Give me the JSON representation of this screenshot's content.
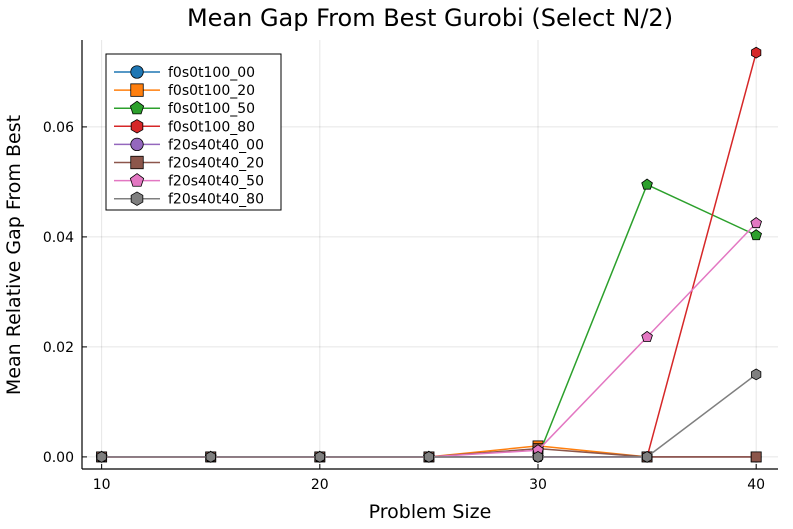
{
  "chart_data": {
    "type": "line",
    "title": "Mean Gap From Best Gurobi (Select N/2)",
    "xlabel": "Problem Size",
    "ylabel": "Mean Relative Gap From Best",
    "xlim": [
      9.1,
      41.0
    ],
    "ylim": [
      -0.0022,
      0.0758
    ],
    "xticks": [
      10,
      20,
      30,
      40
    ],
    "xtick_labels": [
      "10",
      "20",
      "30",
      "40"
    ],
    "yticks": [
      0,
      0.02,
      0.04,
      0.06
    ],
    "ytick_labels": [
      "0.00",
      "0.02",
      "0.04",
      "0.06"
    ],
    "grid": true,
    "legend_position": "top-left",
    "x": [
      10,
      15,
      20,
      25,
      30,
      35,
      40
    ],
    "series": [
      {
        "name": "f0s0t100_00",
        "color": "#1f77b4",
        "marker": "circle",
        "values": [
          0,
          0,
          0,
          0,
          0,
          0,
          0
        ]
      },
      {
        "name": "f0s0t100_20",
        "color": "#ff7f0e",
        "marker": "square",
        "values": [
          0,
          0,
          0,
          0,
          0.002,
          0,
          0
        ]
      },
      {
        "name": "f0s0t100_50",
        "color": "#2ca02c",
        "marker": "pentagon",
        "values": [
          0,
          0,
          0,
          0,
          0,
          0.0495,
          0.0403
        ]
      },
      {
        "name": "f0s0t100_80",
        "color": "#d62728",
        "marker": "hexagon",
        "values": [
          0,
          0,
          0,
          0,
          0,
          0,
          0.0735
        ]
      },
      {
        "name": "f20s40t40_00",
        "color": "#9467bd",
        "marker": "circle",
        "values": [
          0,
          0,
          0,
          0,
          0,
          0,
          0
        ]
      },
      {
        "name": "f20s40t40_20",
        "color": "#8c564b",
        "marker": "square",
        "values": [
          0,
          0,
          0,
          0,
          0.0015,
          0,
          0
        ]
      },
      {
        "name": "f20s40t40_50",
        "color": "#e377c2",
        "marker": "pentagon",
        "values": [
          0,
          0,
          0,
          0,
          0.0012,
          0.0218,
          0.0425
        ]
      },
      {
        "name": "f20s40t40_80",
        "color": "#7f7f7f",
        "marker": "hexagon",
        "values": [
          0,
          0,
          0,
          0,
          0,
          0,
          0.015
        ]
      }
    ]
  }
}
